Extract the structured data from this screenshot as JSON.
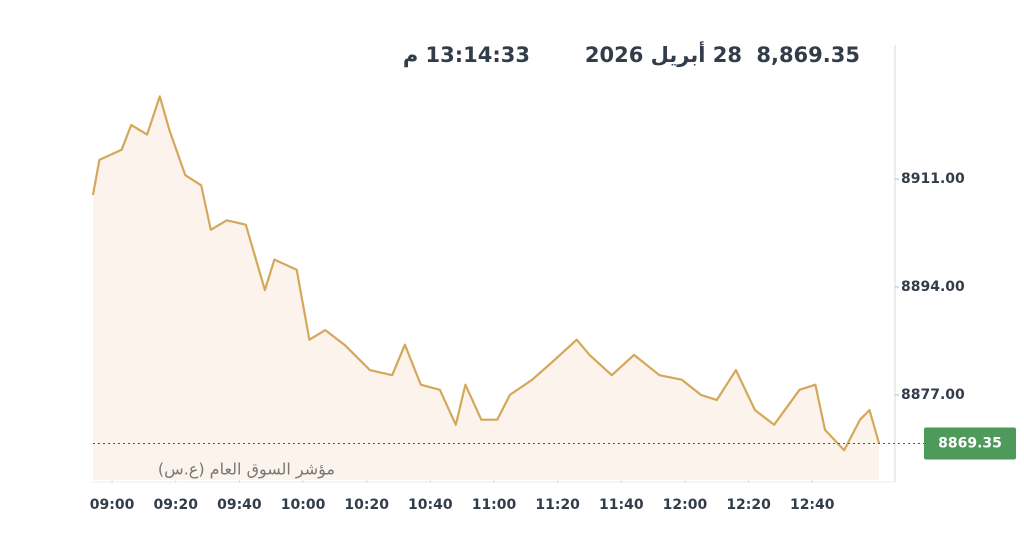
{
  "header": {
    "price": "8,869.35",
    "date": "28 أبريل 2026",
    "time": "13:14:33 م"
  },
  "chart_data": {
    "type": "area",
    "caption": "مؤشر السوق العام (ع.س)",
    "color": "#d4a85a",
    "fill": "#fbf3ec",
    "x": [
      534,
      536,
      543,
      546,
      551,
      555,
      558,
      563,
      568,
      571,
      576,
      582,
      588,
      591,
      598,
      602,
      607,
      613,
      621,
      628,
      632,
      637,
      643,
      648,
      651,
      656,
      661,
      665,
      672,
      679,
      686,
      690,
      697,
      704,
      712,
      719,
      725,
      730,
      736,
      742,
      748,
      756,
      761,
      764,
      770,
      775,
      778,
      781
    ],
    "values": [
      8908.5,
      8914,
      8915.6,
      8919.5,
      8918,
      8924,
      8918.7,
      8911.6,
      8910,
      8903,
      8904.5,
      8903.8,
      8893.5,
      8898.3,
      8896.7,
      8885.7,
      8887.2,
      8884.9,
      8880.9,
      8880.1,
      8884.9,
      8878.6,
      8877.8,
      8872.3,
      8878.6,
      8873.1,
      8873.1,
      8877,
      8879.4,
      8882.5,
      8885.7,
      8883.3,
      8880.1,
      8883.3,
      8880.1,
      8879.4,
      8877,
      8876.2,
      8880.9,
      8874.6,
      8872.3,
      8877.8,
      8878.6,
      8871.5,
      8868.3,
      8873.1,
      8874.6,
      8869.35
    ],
    "xlim": [
      534,
      786
    ],
    "ylim": [
      8863.6,
      8932.1
    ],
    "xticks": [
      {
        "value": 540,
        "label": "09:00"
      },
      {
        "value": 560,
        "label": "09:20"
      },
      {
        "value": 580,
        "label": "09:40"
      },
      {
        "value": 600,
        "label": "10:00"
      },
      {
        "value": 620,
        "label": "10:20"
      },
      {
        "value": 640,
        "label": "10:40"
      },
      {
        "value": 660,
        "label": "11:00"
      },
      {
        "value": 680,
        "label": "11:20"
      },
      {
        "value": 700,
        "label": "11:40"
      },
      {
        "value": 720,
        "label": "12:00"
      },
      {
        "value": 740,
        "label": "12:20"
      },
      {
        "value": 760,
        "label": "12:40"
      }
    ],
    "yticks": [
      {
        "value": 8877,
        "label": "8877.00"
      },
      {
        "value": 8894,
        "label": "8894.00"
      },
      {
        "value": 8911,
        "label": "8911.00"
      }
    ],
    "current": {
      "value": 8869.35,
      "label": "8869.35",
      "color": "#4e9a5a"
    }
  }
}
